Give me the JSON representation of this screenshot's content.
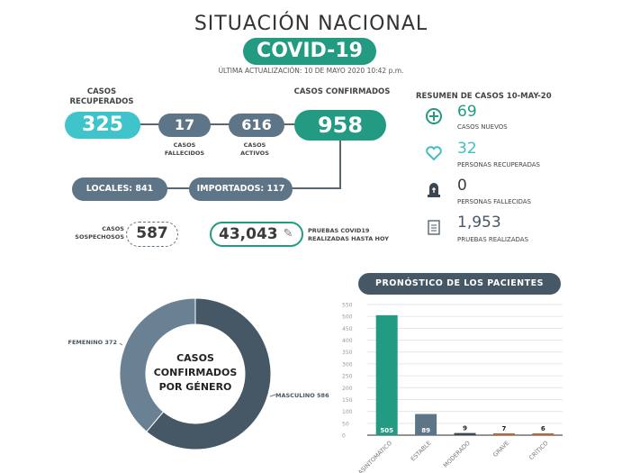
{
  "header": {
    "title": "SITUACIÓN NACIONAL",
    "badge": "COVID-19",
    "updated": "ÚLTIMA ACTUALIZACIÓN: 10 DE MAYO 2020 10:42 p.m."
  },
  "flow": {
    "recuperados": {
      "label": "CASOS RECUPERADOS",
      "value": "325"
    },
    "fallecidos": {
      "label": "CASOS FALLECIDOS",
      "value": "17"
    },
    "activos": {
      "label": "CASOS ACTIVOS",
      "value": "616"
    },
    "confirmados": {
      "label": "CASOS CONFIRMADOS",
      "value": "958"
    },
    "locales": "LOCALES: 841",
    "importados": "IMPORTADOS: 117",
    "sospechosos": {
      "label": "CASOS SOSPECHOSOS",
      "value": "587"
    },
    "pruebas": {
      "label": "PRUEBAS COVID19 REALIZADAS HASTA HOY",
      "value": "43,043"
    }
  },
  "resumen": {
    "title": "RESUMEN DE CASOS 10-MAY-20",
    "items": [
      {
        "icon": "plus-circle-icon",
        "value": "69",
        "label": "CASOS NUEVOS",
        "color": "#239a82"
      },
      {
        "icon": "heart-icon",
        "value": "32",
        "label": "PERSONAS RECUPERADAS",
        "color": "#3fbfc0"
      },
      {
        "icon": "tombstone-icon",
        "value": "0",
        "label": "PERSONAS FALLECIDAS",
        "color": "#3b3b3b"
      },
      {
        "icon": "clipboard-icon",
        "value": "1,953",
        "label": "PRUEBAS REALIZADAS",
        "color": "#465866"
      }
    ]
  },
  "colors": {
    "teal": "#239a82",
    "cyan": "#3fc4cc",
    "slate": "#5e7587",
    "dark": "#465866"
  },
  "chart_data": [
    {
      "type": "pie",
      "variant": "donut",
      "center_text": "CASOS CONFIRMADOS POR GÉNERO",
      "slices": [
        {
          "name": "MASCULINO",
          "value": 586,
          "label": "MASCULINO 586",
          "color": "#465866"
        },
        {
          "name": "FEMENINO",
          "value": 372,
          "label": "FEMENINO 372",
          "color": "#6a8194"
        }
      ]
    },
    {
      "type": "bar",
      "title": "PRONÓSTICO DE LOS PACIENTES",
      "categories": [
        "ASINTOMÁTICO",
        "ESTABLE",
        "MODERADO",
        "GRAVE",
        "CRÍTICO"
      ],
      "values": [
        505,
        89,
        9,
        7,
        6
      ],
      "colors": [
        "#239a82",
        "#5e7587",
        "#3d4a52",
        "#c8603a",
        "#c8603a"
      ],
      "ylim": [
        0,
        550
      ],
      "yticks": [
        0,
        50,
        100,
        150,
        200,
        250,
        300,
        350,
        400,
        450,
        500,
        550
      ],
      "grid": true
    }
  ]
}
